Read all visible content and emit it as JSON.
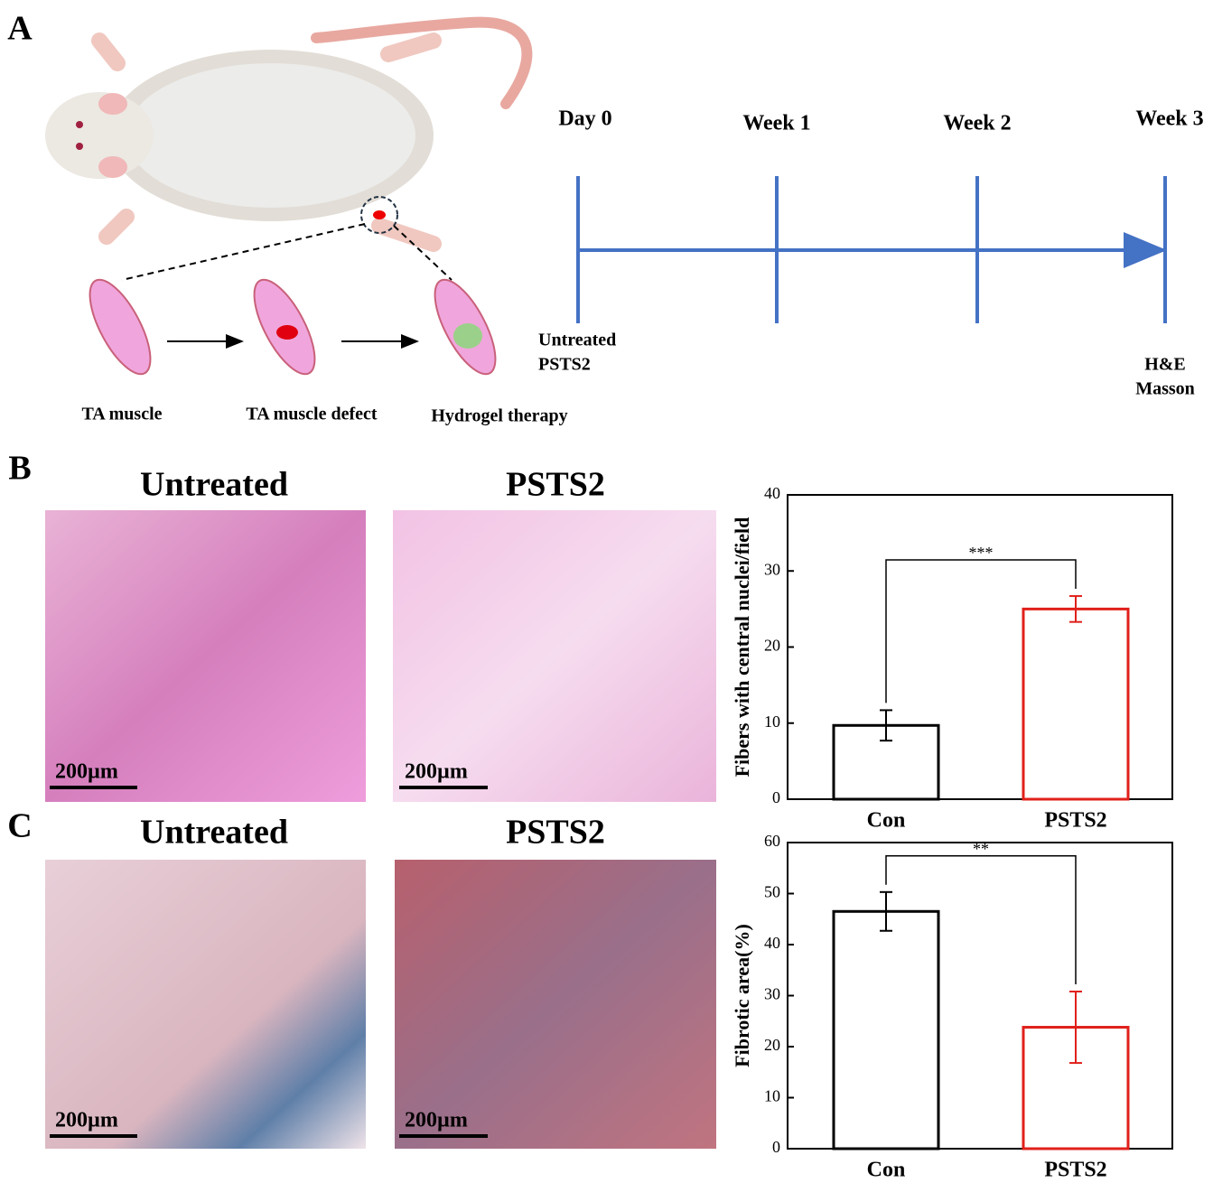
{
  "figure": {
    "panel_labels": [
      "A",
      "B",
      "C"
    ],
    "panel_a": {
      "steps": [
        "TA muscle",
        "TA muscle defect",
        "Hydrogel therapy"
      ],
      "timeline": [
        "Day 0",
        "Week 1",
        "Week 2",
        "Week 3"
      ],
      "start_groups": [
        "Untreated",
        "PSTS2"
      ],
      "end_assays": [
        "H&E",
        "Masson"
      ]
    },
    "panel_b": {
      "titles": [
        "Untreated",
        "PSTS2"
      ],
      "scale_bars": [
        "200µm",
        "200µm"
      ]
    },
    "panel_c": {
      "titles": [
        "Untreated",
        "PSTS2"
      ],
      "scale_bars": [
        "200µm",
        "200µm"
      ]
    }
  },
  "chart_data": [
    {
      "type": "bar",
      "ylabel": "Fibers with central nuclei/field",
      "categories": [
        "Con",
        "PSTS2"
      ],
      "values": [
        9.7,
        25
      ],
      "errors": [
        2.0,
        1.7
      ],
      "colors": [
        "#000000",
        "#e0201b"
      ],
      "annotation": "***",
      "ylim": [
        0,
        40
      ],
      "yticks": [
        0,
        10,
        20,
        30,
        40
      ]
    },
    {
      "type": "bar",
      "ylabel": "Fibrotic area(%)",
      "categories": [
        "Con",
        "PSTS2"
      ],
      "values": [
        46.5,
        23.8
      ],
      "errors": [
        3.8,
        7.0
      ],
      "colors": [
        "#000000",
        "#e0201b"
      ],
      "annotation": "**",
      "ylim": [
        0,
        60
      ],
      "yticks": [
        0,
        10,
        20,
        30,
        40,
        50,
        60
      ]
    }
  ]
}
